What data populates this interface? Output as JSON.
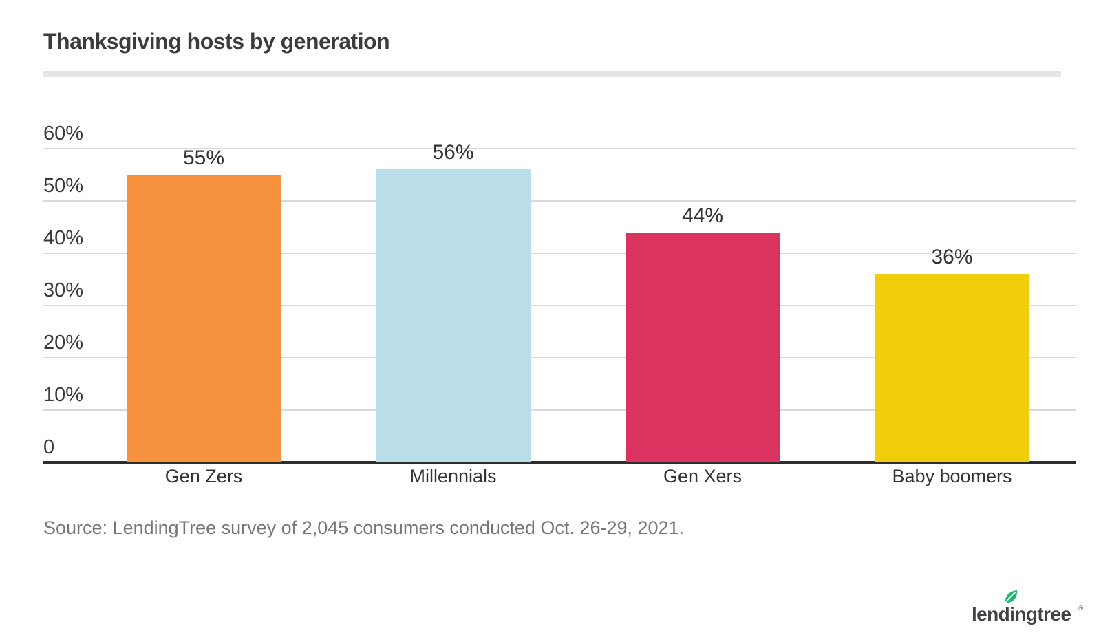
{
  "page": {
    "source_note": "Source: LendingTree survey of 2,045 consumers conducted Oct. 26-29, 2021.",
    "logo": {
      "text": "lendingtree",
      "registered": "®",
      "leaf_icon": "leaf-icon"
    }
  },
  "colors": {
    "title_text": "#3b3c3e",
    "axis_label_text": "#3a3a3a",
    "gridline": "#d9d9d9",
    "axis_line": "#2e2e2e",
    "title_divider": "#e5e5e5",
    "source_text": "#747679",
    "logo_text": "#3e4145",
    "leaf_green": "#21b573"
  },
  "chart_data": {
    "type": "bar",
    "title": "Thanksgiving hosts by generation",
    "categories": [
      "Gen Zers",
      "Millennials",
      "Gen Xers",
      "Baby boomers"
    ],
    "values": [
      55,
      56,
      44,
      36
    ],
    "value_labels": [
      "55%",
      "56%",
      "44%",
      "36%"
    ],
    "bar_colors": [
      "#f6913d",
      "#b9dee9",
      "#da335f",
      "#f0ce0b"
    ],
    "yticks": [
      {
        "label": "60%",
        "value": 60
      },
      {
        "label": "50%",
        "value": 50
      },
      {
        "label": "40%",
        "value": 40
      },
      {
        "label": "30%",
        "value": 30
      },
      {
        "label": "20%",
        "value": 20
      },
      {
        "label": "10%",
        "value": 10
      },
      {
        "label": "0",
        "value": 0
      }
    ],
    "ylim": [
      0,
      60
    ],
    "grid": true,
    "legend": false,
    "xlabel": "",
    "ylabel": ""
  }
}
